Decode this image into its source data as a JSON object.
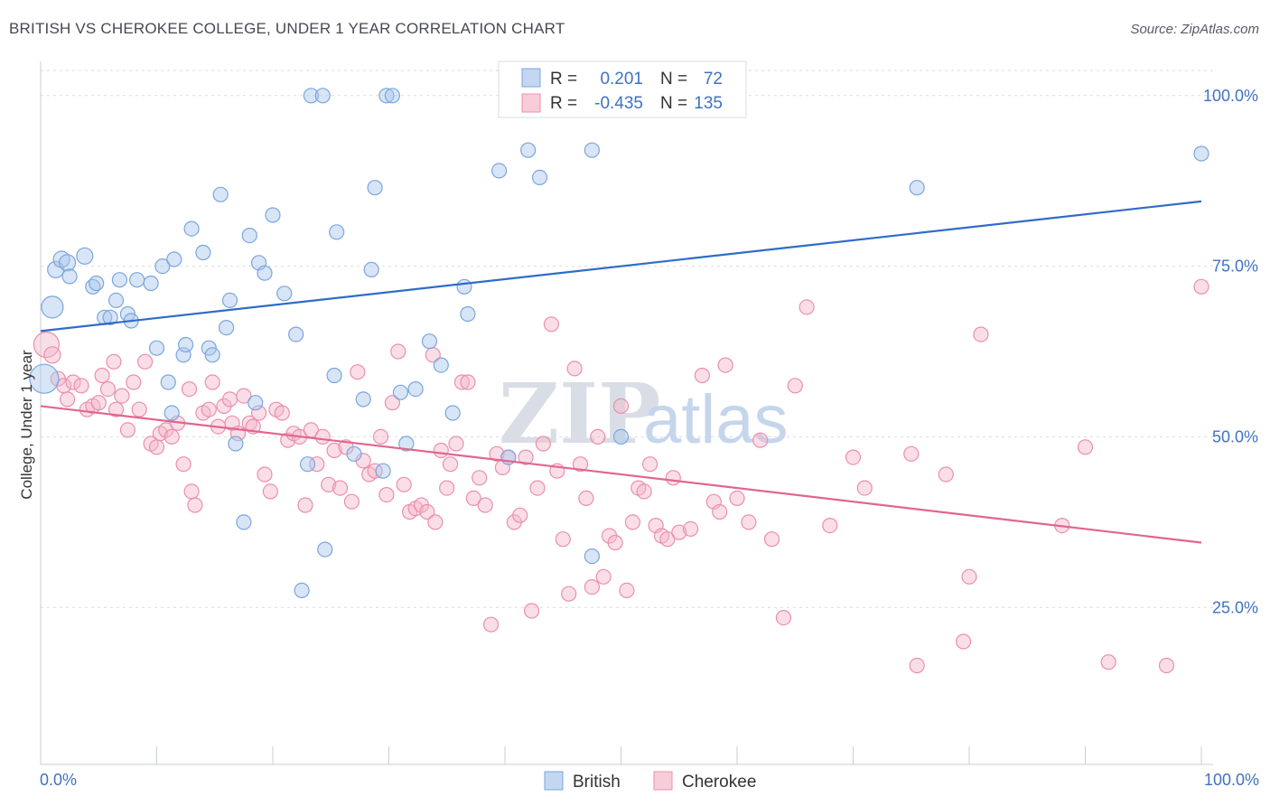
{
  "title": "BRITISH VS CHEROKEE COLLEGE, UNDER 1 YEAR CORRELATION CHART",
  "source": "Source: ZipAtlas.com",
  "watermark": {
    "zip": "ZIP",
    "atlas": "atlas"
  },
  "colors": {
    "british_fill": "#a9c6ec",
    "british_stroke": "#7aa6dd",
    "british_line": "#2f6cc8",
    "cherokee_fill": "#f5b6c9",
    "cherokee_stroke": "#eb8fac",
    "cherokee_line": "#e0668f",
    "grid": "#d8dce2",
    "tick_label": "#3f72c4"
  },
  "legend": {
    "rows": [
      {
        "r_label": "R =",
        "r_value": "0.201",
        "n_label": "N =",
        "n_value": "72"
      },
      {
        "r_label": "R =",
        "r_value": "-0.435",
        "n_label": "N =",
        "n_value": "135"
      }
    ],
    "bottom": [
      "British",
      "Cherokee"
    ]
  },
  "chart_data": {
    "type": "scatter",
    "title": "BRITISH VS CHEROKEE COLLEGE, UNDER 1 YEAR CORRELATION CHART",
    "xlabel": "",
    "ylabel": "College, Under 1 year",
    "xlim": [
      0,
      100
    ],
    "ylim": [
      2,
      105
    ],
    "x_tick_labels": [
      "0.0%",
      "100.0%"
    ],
    "y_ticks": [
      25,
      50,
      75,
      100
    ],
    "y_tick_labels": [
      "25.0%",
      "50.0%",
      "75.0%",
      "100.0%"
    ],
    "grid": true,
    "legend_position": "top-center",
    "series": [
      {
        "name": "British",
        "r": 0.201,
        "n": 72,
        "trend": {
          "x": [
            0,
            100
          ],
          "y": [
            65.5,
            84.5
          ]
        },
        "points": [
          [
            0.3,
            58.5,
            16
          ],
          [
            1.0,
            69.0,
            12
          ],
          [
            1.3,
            74.5,
            9
          ],
          [
            1.8,
            76.0,
            9
          ],
          [
            2.3,
            75.5,
            9
          ],
          [
            3.8,
            76.5,
            9
          ],
          [
            2.5,
            73.5,
            8
          ],
          [
            4.5,
            72.0,
            8
          ],
          [
            4.8,
            72.5,
            8
          ],
          [
            5.5,
            67.5,
            8
          ],
          [
            6.0,
            67.5,
            8
          ],
          [
            6.5,
            70.0,
            8
          ],
          [
            6.8,
            73.0,
            8
          ],
          [
            7.5,
            68.0,
            8
          ],
          [
            7.8,
            67.0,
            8
          ],
          [
            8.3,
            73.0,
            8
          ],
          [
            9.5,
            72.5,
            8
          ],
          [
            10.0,
            63.0,
            8
          ],
          [
            10.5,
            75.0,
            8
          ],
          [
            11.0,
            58.0,
            8
          ],
          [
            11.3,
            53.5,
            8
          ],
          [
            11.5,
            76.0,
            8
          ],
          [
            12.3,
            62.0,
            8
          ],
          [
            12.5,
            63.5,
            8
          ],
          [
            13.0,
            80.5,
            8
          ],
          [
            14.0,
            77.0,
            8
          ],
          [
            14.5,
            63.0,
            8
          ],
          [
            14.8,
            62.0,
            8
          ],
          [
            15.5,
            85.5,
            8
          ],
          [
            16.0,
            66.0,
            8
          ],
          [
            16.3,
            70.0,
            8
          ],
          [
            16.8,
            49.0,
            8
          ],
          [
            17.5,
            37.5,
            8
          ],
          [
            18.0,
            79.5,
            8
          ],
          [
            18.5,
            55.0,
            8
          ],
          [
            18.8,
            75.5,
            8
          ],
          [
            19.3,
            74.0,
            8
          ],
          [
            20.0,
            82.5,
            8
          ],
          [
            21.0,
            71.0,
            8
          ],
          [
            22.0,
            65.0,
            8
          ],
          [
            22.5,
            27.5,
            8
          ],
          [
            23.0,
            46.0,
            8
          ],
          [
            23.3,
            100.0,
            8
          ],
          [
            24.3,
            100.0,
            8
          ],
          [
            24.5,
            33.5,
            8
          ],
          [
            25.5,
            80.0,
            8
          ],
          [
            27.0,
            47.5,
            8
          ],
          [
            27.8,
            55.5,
            8
          ],
          [
            28.5,
            74.5,
            8
          ],
          [
            28.8,
            86.5,
            8
          ],
          [
            29.5,
            45.0,
            8
          ],
          [
            29.8,
            100.0,
            8
          ],
          [
            30.3,
            100.0,
            8
          ],
          [
            31.0,
            56.5,
            8
          ],
          [
            31.5,
            49.0,
            8
          ],
          [
            32.3,
            57.0,
            8
          ],
          [
            34.5,
            60.5,
            8
          ],
          [
            35.5,
            53.5,
            8
          ],
          [
            36.5,
            72.0,
            8
          ],
          [
            36.8,
            68.0,
            8
          ],
          [
            39.5,
            89.0,
            8
          ],
          [
            40.3,
            47.0,
            8
          ],
          [
            42.0,
            92.0,
            8
          ],
          [
            43.0,
            88.0,
            8
          ],
          [
            47.5,
            92.0,
            8
          ],
          [
            47.5,
            32.5,
            8
          ],
          [
            49.5,
            100.0,
            8
          ],
          [
            50.0,
            50.0,
            8
          ],
          [
            75.5,
            86.5,
            8
          ],
          [
            100.0,
            91.5,
            8
          ],
          [
            25.3,
            59.0,
            8
          ],
          [
            33.5,
            64.0,
            8
          ]
        ]
      },
      {
        "name": "Cherokee",
        "r": -0.435,
        "n": 135,
        "trend": {
          "x": [
            0,
            100
          ],
          "y": [
            54.5,
            34.5
          ]
        },
        "points": [
          [
            0.5,
            63.5,
            14
          ],
          [
            1.0,
            62.0,
            9
          ],
          [
            1.5,
            58.5,
            8
          ],
          [
            2.0,
            57.5,
            8
          ],
          [
            2.3,
            55.5,
            8
          ],
          [
            2.8,
            58.0,
            8
          ],
          [
            3.5,
            57.5,
            8
          ],
          [
            4.0,
            54.0,
            8
          ],
          [
            4.5,
            54.5,
            8
          ],
          [
            5.0,
            55.0,
            8
          ],
          [
            5.3,
            59.0,
            8
          ],
          [
            5.8,
            57.0,
            8
          ],
          [
            6.3,
            61.0,
            8
          ],
          [
            6.5,
            54.0,
            8
          ],
          [
            7.0,
            56.0,
            8
          ],
          [
            7.5,
            51.0,
            8
          ],
          [
            8.0,
            58.0,
            8
          ],
          [
            8.5,
            54.0,
            8
          ],
          [
            9.0,
            61.0,
            8
          ],
          [
            9.5,
            49.0,
            8
          ],
          [
            10.0,
            48.5,
            8
          ],
          [
            10.3,
            50.5,
            8
          ],
          [
            10.8,
            51.0,
            8
          ],
          [
            11.3,
            50.0,
            8
          ],
          [
            11.8,
            52.0,
            8
          ],
          [
            12.3,
            46.0,
            8
          ],
          [
            12.8,
            57.0,
            8
          ],
          [
            13.0,
            42.0,
            8
          ],
          [
            13.3,
            40.0,
            8
          ],
          [
            14.0,
            53.5,
            8
          ],
          [
            14.5,
            54.0,
            8
          ],
          [
            14.8,
            58.0,
            8
          ],
          [
            15.3,
            51.5,
            8
          ],
          [
            15.8,
            54.5,
            8
          ],
          [
            16.3,
            55.5,
            8
          ],
          [
            16.5,
            52.0,
            8
          ],
          [
            17.0,
            50.5,
            8
          ],
          [
            17.5,
            56.0,
            8
          ],
          [
            18.0,
            52.0,
            8
          ],
          [
            18.3,
            51.5,
            8
          ],
          [
            18.8,
            53.5,
            8
          ],
          [
            19.3,
            44.5,
            8
          ],
          [
            19.8,
            42.0,
            8
          ],
          [
            20.3,
            54.0,
            8
          ],
          [
            20.8,
            53.5,
            8
          ],
          [
            21.3,
            49.5,
            8
          ],
          [
            21.8,
            50.5,
            8
          ],
          [
            22.3,
            50.0,
            8
          ],
          [
            22.8,
            40.0,
            8
          ],
          [
            23.3,
            51.0,
            8
          ],
          [
            23.8,
            46.0,
            8
          ],
          [
            24.3,
            50.0,
            8
          ],
          [
            24.8,
            43.0,
            8
          ],
          [
            25.3,
            48.0,
            8
          ],
          [
            25.8,
            42.5,
            8
          ],
          [
            26.3,
            48.5,
            8
          ],
          [
            26.8,
            40.5,
            8
          ],
          [
            27.3,
            59.5,
            8
          ],
          [
            27.8,
            46.5,
            8
          ],
          [
            28.3,
            44.5,
            8
          ],
          [
            28.8,
            45.0,
            8
          ],
          [
            29.3,
            50.0,
            8
          ],
          [
            29.8,
            41.5,
            8
          ],
          [
            30.3,
            55.0,
            8
          ],
          [
            30.8,
            62.5,
            8
          ],
          [
            31.3,
            43.0,
            8
          ],
          [
            31.8,
            39.0,
            8
          ],
          [
            32.3,
            39.5,
            8
          ],
          [
            32.8,
            40.0,
            8
          ],
          [
            33.3,
            39.0,
            8
          ],
          [
            33.8,
            62.0,
            8
          ],
          [
            34.0,
            37.5,
            8
          ],
          [
            34.5,
            48.0,
            8
          ],
          [
            35.0,
            42.5,
            8
          ],
          [
            35.3,
            46.0,
            8
          ],
          [
            35.8,
            49.0,
            8
          ],
          [
            36.3,
            58.0,
            8
          ],
          [
            36.8,
            58.0,
            8
          ],
          [
            37.3,
            41.0,
            8
          ],
          [
            37.8,
            44.0,
            8
          ],
          [
            38.3,
            40.0,
            8
          ],
          [
            38.8,
            22.5,
            8
          ],
          [
            39.3,
            47.5,
            8
          ],
          [
            39.8,
            45.5,
            8
          ],
          [
            40.3,
            47.0,
            8
          ],
          [
            40.8,
            37.5,
            8
          ],
          [
            41.3,
            38.5,
            8
          ],
          [
            41.8,
            47.0,
            8
          ],
          [
            42.3,
            24.5,
            8
          ],
          [
            42.8,
            42.5,
            8
          ],
          [
            43.3,
            49.0,
            8
          ],
          [
            44.0,
            66.5,
            8
          ],
          [
            44.5,
            45.0,
            8
          ],
          [
            45.0,
            35.0,
            8
          ],
          [
            45.5,
            27.0,
            8
          ],
          [
            46.0,
            60.0,
            8
          ],
          [
            46.5,
            46.0,
            8
          ],
          [
            47.0,
            41.0,
            8
          ],
          [
            47.5,
            28.0,
            8
          ],
          [
            48.0,
            50.0,
            8
          ],
          [
            48.5,
            29.5,
            8
          ],
          [
            49.0,
            35.5,
            8
          ],
          [
            49.5,
            34.5,
            8
          ],
          [
            50.0,
            54.5,
            8
          ],
          [
            50.5,
            27.5,
            8
          ],
          [
            51.0,
            37.5,
            8
          ],
          [
            51.5,
            42.5,
            8
          ],
          [
            52.0,
            42.0,
            8
          ],
          [
            52.5,
            46.0,
            8
          ],
          [
            53.0,
            37.0,
            8
          ],
          [
            53.5,
            35.5,
            8
          ],
          [
            54.0,
            35.0,
            8
          ],
          [
            54.5,
            44.0,
            8
          ],
          [
            55.0,
            36.0,
            8
          ],
          [
            56.0,
            36.5,
            8
          ],
          [
            57.0,
            59.0,
            8
          ],
          [
            58.0,
            40.5,
            8
          ],
          [
            58.5,
            39.0,
            8
          ],
          [
            59.0,
            60.5,
            8
          ],
          [
            60.0,
            41.0,
            8
          ],
          [
            61.0,
            37.5,
            8
          ],
          [
            62.0,
            49.5,
            8
          ],
          [
            63.0,
            35.0,
            8
          ],
          [
            64.0,
            23.5,
            8
          ],
          [
            65.0,
            57.5,
            8
          ],
          [
            66.0,
            69.0,
            8
          ],
          [
            70.0,
            47.0,
            8
          ],
          [
            71.0,
            42.5,
            8
          ],
          [
            75.5,
            16.5,
            8
          ],
          [
            78.0,
            44.5,
            8
          ],
          [
            79.5,
            20.0,
            8
          ],
          [
            80.0,
            29.5,
            8
          ],
          [
            81.0,
            65.0,
            8
          ],
          [
            88.0,
            37.0,
            8
          ],
          [
            90.0,
            48.5,
            8
          ],
          [
            92.0,
            17.0,
            8
          ],
          [
            97.0,
            16.5,
            8
          ],
          [
            100.0,
            72.0,
            8
          ],
          [
            75.0,
            47.5,
            8
          ],
          [
            68.0,
            37.0,
            8
          ]
        ]
      }
    ]
  }
}
